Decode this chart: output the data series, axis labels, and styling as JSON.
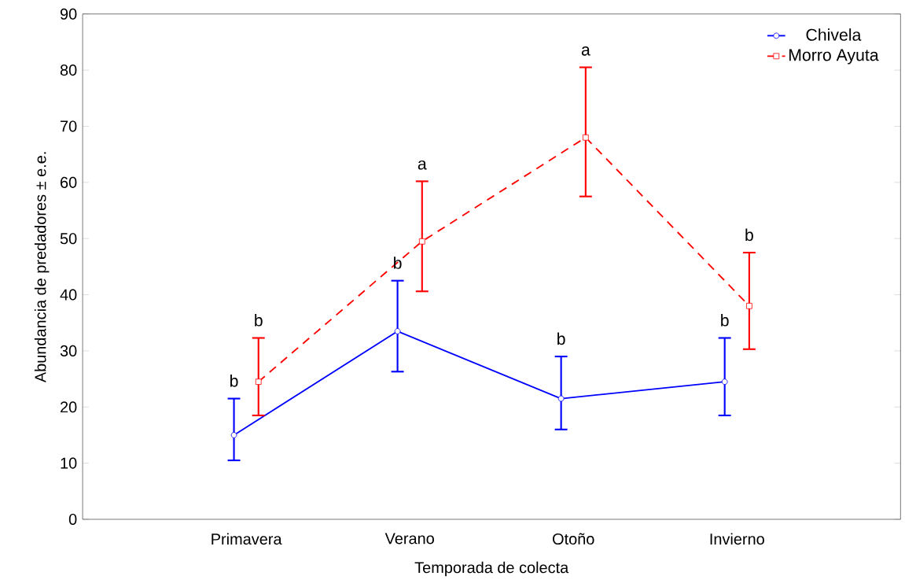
{
  "chart_data": {
    "type": "line",
    "xlabel": "Temporada de colecta",
    "ylabel": "Abundancia de predadores ± e.e.",
    "categories": [
      "Primavera",
      "Verano",
      "Otoño",
      "Invierno"
    ],
    "series": [
      {
        "name": "Chivela",
        "color": "#0000ff",
        "marker": "circle",
        "line_style": "solid",
        "values": [
          15,
          33.5,
          21.5,
          24.5
        ],
        "errors": [
          [
            10.5,
            21.5
          ],
          [
            26.3,
            42.5
          ],
          [
            16,
            29
          ],
          [
            18.5,
            32.3
          ]
        ]
      },
      {
        "name": "Morro Ayuta",
        "color": "#ff0000",
        "marker": "square",
        "line_style": "dashed",
        "values": [
          24.5,
          49.5,
          68,
          38
        ],
        "errors": [
          [
            18.5,
            32.3
          ],
          [
            40.6,
            60.2
          ],
          [
            57.5,
            80.5
          ],
          [
            30.3,
            47.5
          ]
        ]
      }
    ],
    "ylim": [
      0,
      90
    ],
    "yticks": [
      0,
      10,
      20,
      30,
      40,
      50,
      60,
      70,
      80,
      90
    ],
    "grid": false,
    "legend": "top right",
    "annotations": [
      "b",
      "b",
      "b",
      "a",
      "b",
      "a",
      "b",
      "b"
    ]
  }
}
